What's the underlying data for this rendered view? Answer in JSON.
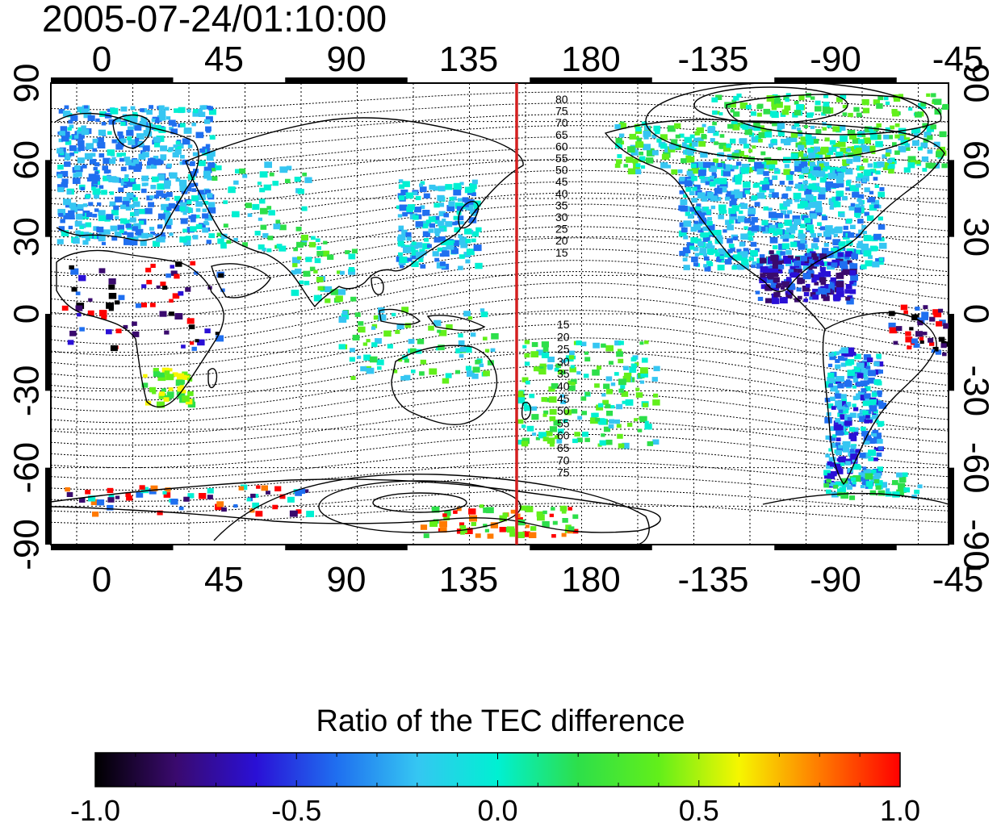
{
  "timestamp": "2005-07-24/01:10:00",
  "map": {
    "longitude_ticks": [
      "0",
      "45",
      "90",
      "135",
      "180",
      "-135",
      "-90",
      "-45"
    ],
    "latitude_ticks": [
      "90",
      "60",
      "30",
      "0",
      "-30",
      "-60",
      "-90"
    ],
    "marker_meridian_color": "#d42020",
    "upper_contour_labels": [
      "80",
      "75",
      "70",
      "65",
      "60",
      "55",
      "50",
      "45",
      "40",
      "35",
      "30",
      "25",
      "20",
      "15"
    ],
    "lower_contour_labels": [
      "15",
      "20",
      "25",
      "30",
      "35",
      "40",
      "45",
      "50",
      "55",
      "60",
      "65",
      "70",
      "75"
    ]
  },
  "colorbar": {
    "title": "Ratio of the TEC difference",
    "ticks": [
      "-1.0",
      "-0.5",
      "0.0",
      "0.5",
      "1.0"
    ],
    "stops": [
      "#000000",
      "#3a0a6e",
      "#2a10d6",
      "#1f6ff0",
      "#35c6f2",
      "#00f0d2",
      "#2ddf4a",
      "#62ef1a",
      "#f6f600",
      "#ff7a00",
      "#ff0000"
    ]
  }
}
